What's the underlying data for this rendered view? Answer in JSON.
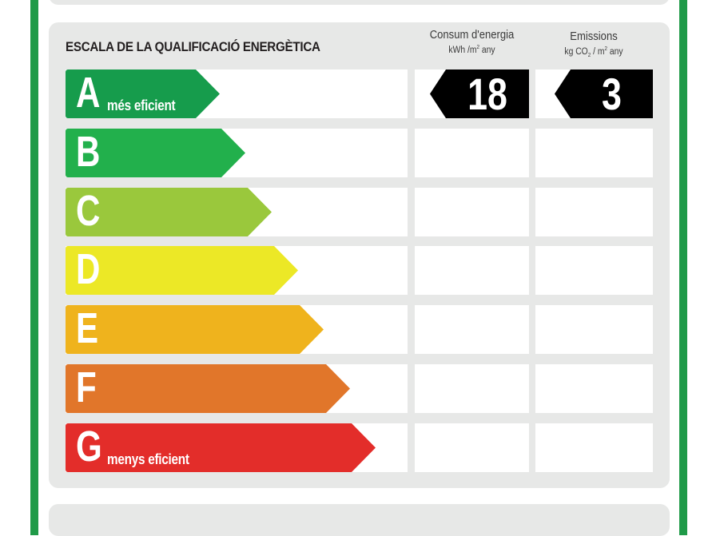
{
  "title": "ESCALA DE LA QUALIFICACIÓ ENERGÈTICA",
  "columns": {
    "energy": {
      "label": "Consum d'energia",
      "unit_pre": "kWh /m",
      "unit_sup": "2",
      "unit_post": " any"
    },
    "emissions": {
      "label": "Emissions",
      "unit_pre": "kg CO",
      "unit_sub": "2",
      "unit_mid": " / m",
      "unit_sup": "2",
      "unit_post": " any"
    }
  },
  "classes": [
    {
      "letter": "A",
      "label": "més eficient",
      "color": "#169c4c"
    },
    {
      "letter": "B",
      "label": "",
      "color": "#22b04c"
    },
    {
      "letter": "C",
      "label": "",
      "color": "#9ac83c"
    },
    {
      "letter": "D",
      "label": "",
      "color": "#ece826"
    },
    {
      "letter": "E",
      "label": "",
      "color": "#efb31d"
    },
    {
      "letter": "F",
      "label": "",
      "color": "#e1762a"
    },
    {
      "letter": "G",
      "label": "menys eficient",
      "color": "#e32d2a"
    }
  ],
  "result": {
    "energy_value": "18",
    "emissions_value": "3",
    "energy_class": "A",
    "emissions_class": "A"
  }
}
